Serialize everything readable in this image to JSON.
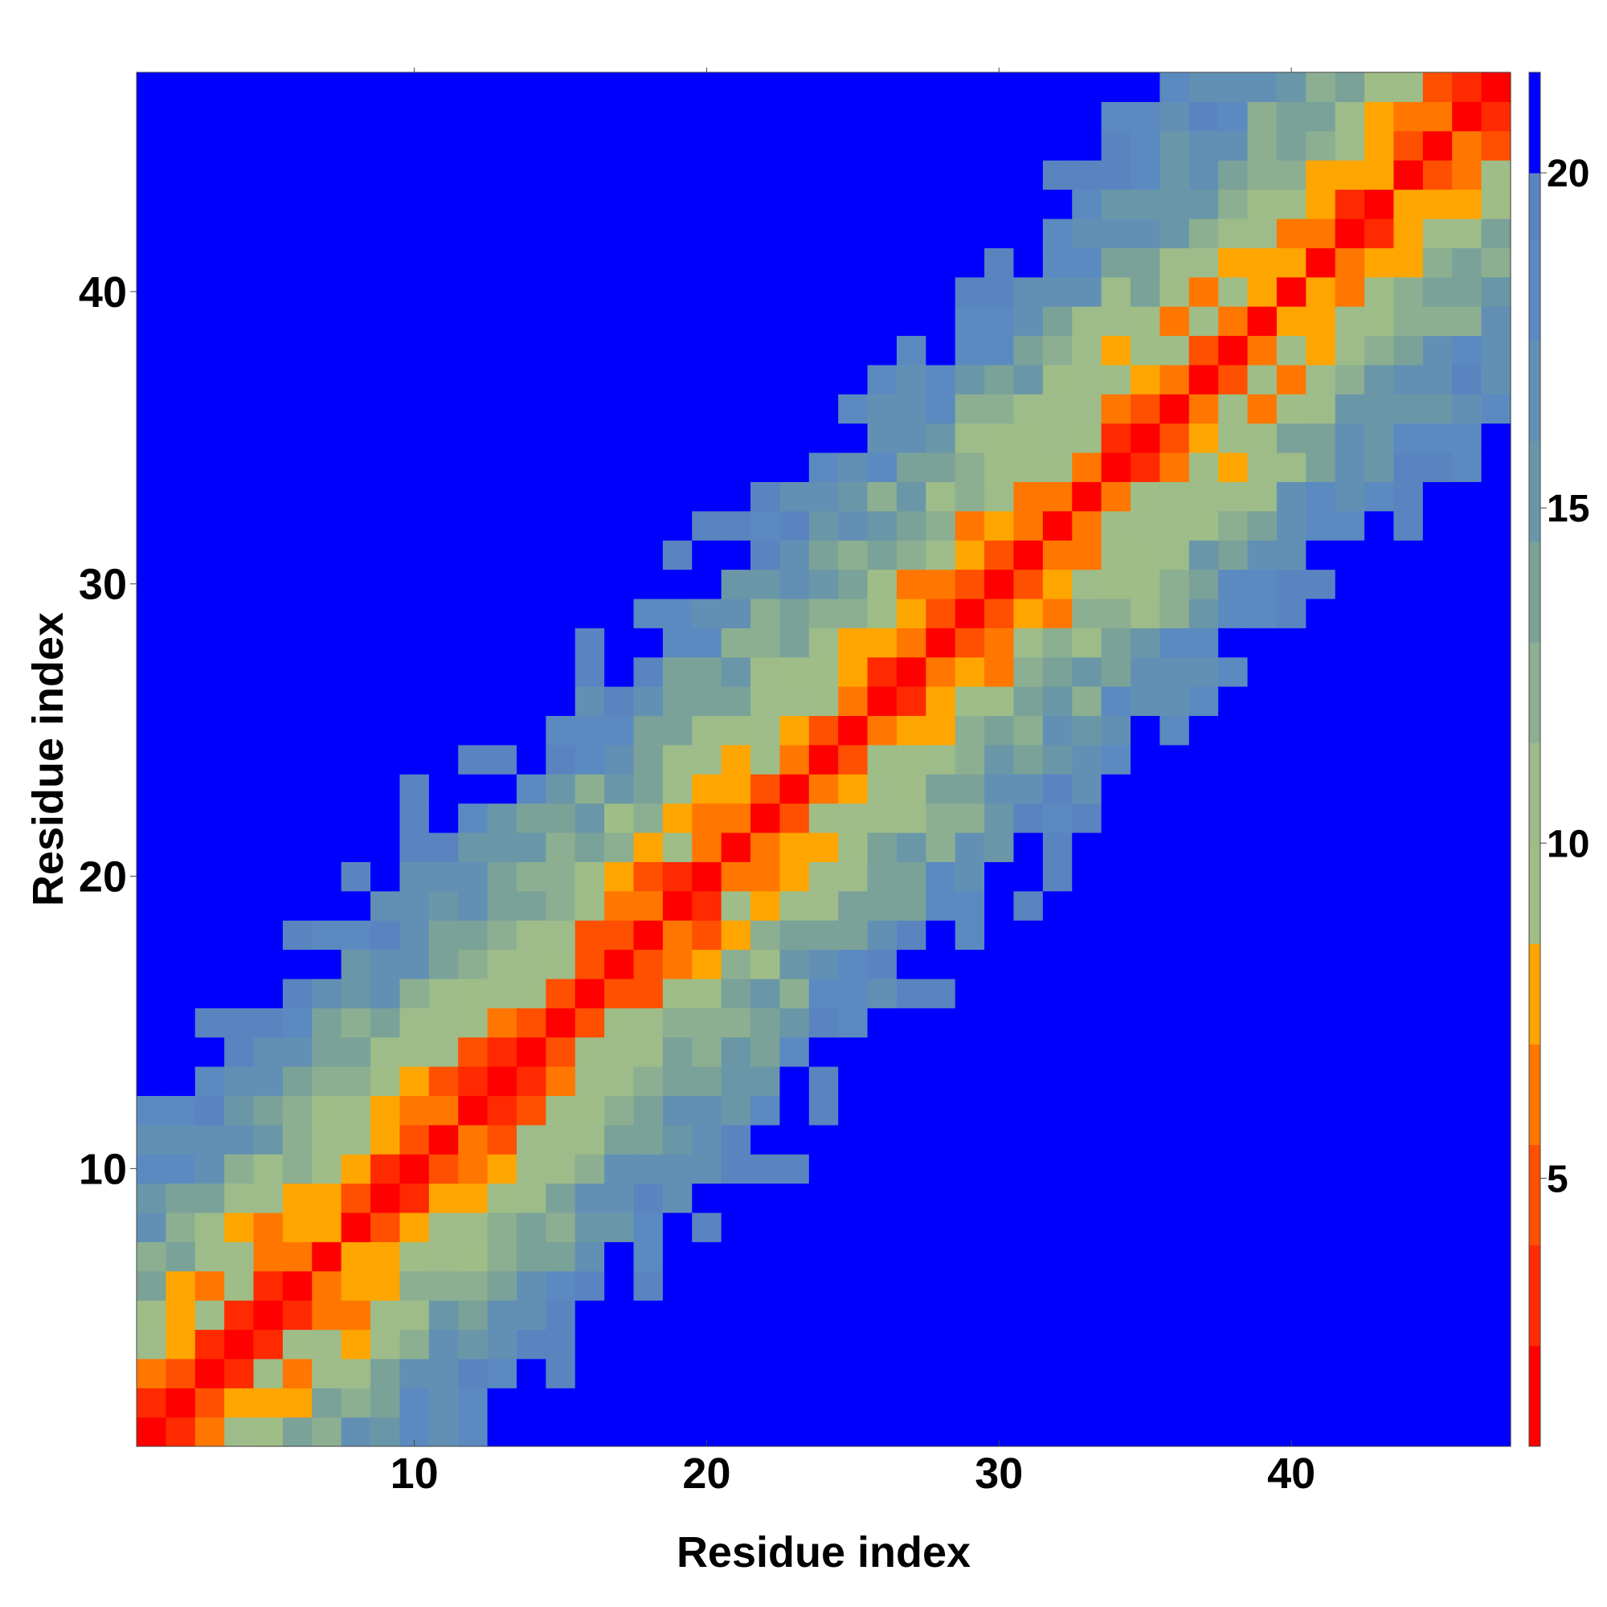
{
  "chart_data": {
    "type": "heatmap",
    "xlabel": "Residue index",
    "ylabel": "Residue index",
    "n": 47,
    "x_range": [
      1,
      47
    ],
    "y_range": [
      1,
      47
    ],
    "x_ticks": [
      10,
      20,
      30,
      40
    ],
    "y_ticks": [
      10,
      20,
      30,
      40
    ],
    "colorbar": {
      "range": [
        1,
        21.5
      ],
      "ticks": [
        5,
        10,
        15,
        20
      ],
      "bands": [
        {
          "from": 1.0,
          "to": 2.5,
          "color": "#ff0000"
        },
        {
          "from": 2.5,
          "to": 4.0,
          "color": "#ff2a00"
        },
        {
          "from": 4.0,
          "to": 5.5,
          "color": "#ff4f00"
        },
        {
          "from": 5.5,
          "to": 7.0,
          "color": "#ff7700"
        },
        {
          "from": 7.0,
          "to": 8.5,
          "color": "#ffa500"
        },
        {
          "from": 8.5,
          "to": 10.0,
          "color": "#9fbd86"
        },
        {
          "from": 10.0,
          "to": 11.5,
          "color": "#9dbc8a"
        },
        {
          "from": 11.5,
          "to": 13.0,
          "color": "#8caf91"
        },
        {
          "from": 13.0,
          "to": 14.5,
          "color": "#7aa299"
        },
        {
          "from": 14.5,
          "to": 16.0,
          "color": "#6a97a8"
        },
        {
          "from": 16.0,
          "to": 17.5,
          "color": "#6290b5"
        },
        {
          "from": 17.5,
          "to": 19.0,
          "color": "#5a8ac0"
        },
        {
          "from": 19.0,
          "to": 20.0,
          "color": "#5a84c0"
        },
        {
          "from": 20.0,
          "to": 21.5,
          "color": "#0000ff"
        }
      ]
    },
    "cap": 20.5,
    "model": {
      "a": 2.4,
      "b": 2.9,
      "e": 0.22
    }
  }
}
